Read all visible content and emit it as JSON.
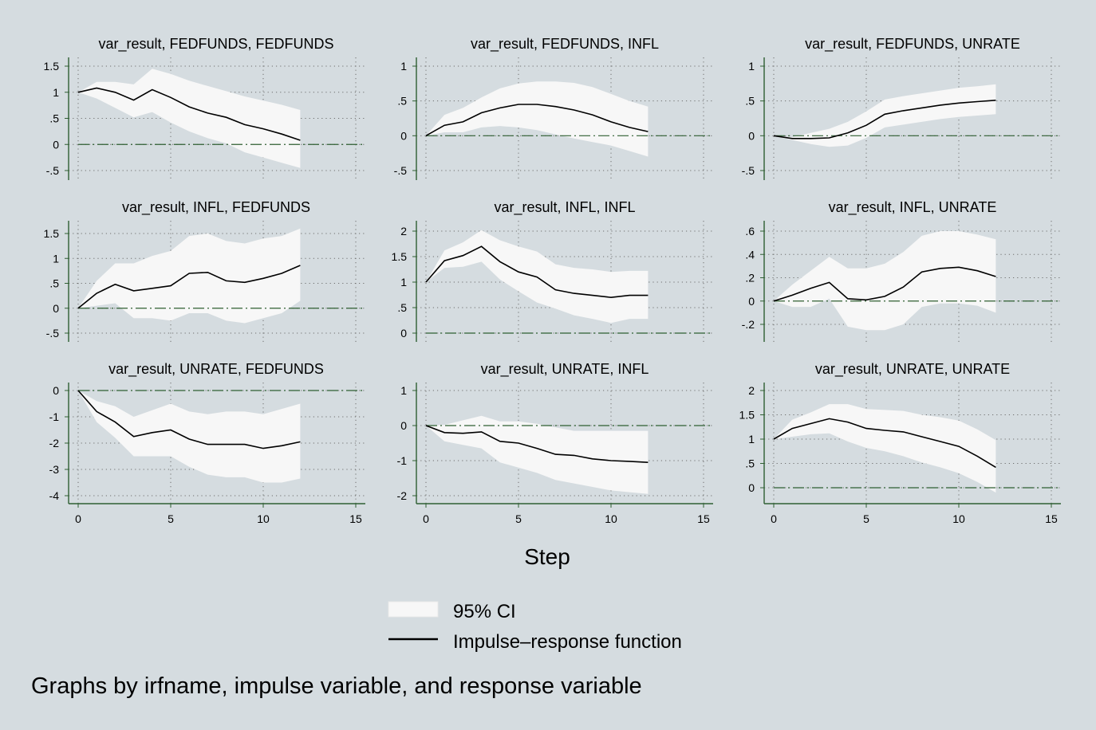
{
  "colors": {
    "background": "#d5dce0",
    "ci_fill": "#f7f7f7",
    "irf_line": "#000000",
    "axis": "#2f5f32",
    "zero_line": "#2f5f32",
    "grid": "#6e6e6e"
  },
  "xaxis_title": "Step",
  "legend": {
    "ci_label": "95% CI",
    "irf_label": "Impulse–response function"
  },
  "note": "Graphs by irfname, impulse variable, and response variable",
  "chart_data": [
    {
      "type": "area",
      "title": "var_result, FEDFUNDS, FEDFUNDS",
      "x_ticks": [
        0,
        5,
        10,
        15
      ],
      "y_ticks": [
        -0.5,
        0,
        0.5,
        1,
        1.5
      ],
      "y_tick_labels": [
        "-.5",
        "0",
        ".5",
        "1",
        "1.5"
      ],
      "xlim": [
        0,
        15
      ],
      "ylim": [
        -0.5,
        1.5
      ],
      "grid": true,
      "series": [
        {
          "name": "95% CI",
          "x": [
            0,
            1,
            2,
            3,
            4,
            5,
            6,
            7,
            8,
            9,
            10,
            11,
            12
          ],
          "lower": [
            1,
            0.88,
            0.7,
            0.52,
            0.62,
            0.42,
            0.25,
            0.12,
            0.02,
            -0.15,
            -0.25,
            -0.35,
            -0.45
          ],
          "upper": [
            1,
            1.2,
            1.2,
            1.15,
            1.45,
            1.35,
            1.22,
            1.12,
            1.02,
            0.92,
            0.84,
            0.76,
            0.66
          ]
        },
        {
          "name": "Impulse–response function",
          "x": [
            0,
            1,
            2,
            3,
            4,
            5,
            6,
            7,
            8,
            9,
            10,
            11,
            12
          ],
          "values": [
            1,
            1.08,
            1.0,
            0.85,
            1.05,
            0.9,
            0.72,
            0.6,
            0.52,
            0.38,
            0.3,
            0.2,
            0.08
          ]
        }
      ]
    },
    {
      "type": "area",
      "title": "var_result, FEDFUNDS, INFL",
      "x_ticks": [
        0,
        5,
        10,
        15
      ],
      "y_ticks": [
        -0.5,
        0,
        0.5,
        1
      ],
      "y_tick_labels": [
        "-.5",
        "0",
        ".5",
        "1"
      ],
      "xlim": [
        0,
        15
      ],
      "ylim": [
        -0.5,
        1
      ],
      "grid": true,
      "series": [
        {
          "name": "95% CI",
          "x": [
            0,
            1,
            2,
            3,
            4,
            5,
            6,
            7,
            8,
            9,
            10,
            11,
            12
          ],
          "lower": [
            0,
            0.05,
            0.05,
            0.12,
            0.14,
            0.12,
            0.08,
            0.02,
            -0.04,
            -0.09,
            -0.14,
            -0.22,
            -0.3
          ],
          "upper": [
            0,
            0.3,
            0.4,
            0.55,
            0.68,
            0.75,
            0.78,
            0.78,
            0.76,
            0.7,
            0.6,
            0.5,
            0.42
          ]
        },
        {
          "name": "Impulse–response function",
          "x": [
            0,
            1,
            2,
            3,
            4,
            5,
            6,
            7,
            8,
            9,
            10,
            11,
            12
          ],
          "values": [
            0,
            0.15,
            0.2,
            0.33,
            0.4,
            0.45,
            0.45,
            0.42,
            0.37,
            0.3,
            0.2,
            0.12,
            0.06
          ]
        }
      ]
    },
    {
      "type": "area",
      "title": "var_result, FEDFUNDS, UNRATE",
      "x_ticks": [
        0,
        5,
        10,
        15
      ],
      "y_ticks": [
        -0.5,
        0,
        0.5,
        1
      ],
      "y_tick_labels": [
        "-.5",
        "0",
        ".5",
        "1"
      ],
      "xlim": [
        0,
        15
      ],
      "ylim": [
        -0.5,
        1
      ],
      "grid": true,
      "series": [
        {
          "name": "95% CI",
          "x": [
            0,
            1,
            2,
            3,
            4,
            5,
            6,
            7,
            8,
            9,
            10,
            11,
            12
          ],
          "lower": [
            0,
            -0.06,
            -0.12,
            -0.16,
            -0.14,
            -0.03,
            0.12,
            0.16,
            0.2,
            0.24,
            0.27,
            0.29,
            0.31
          ],
          "upper": [
            0,
            -0.02,
            0.04,
            0.1,
            0.2,
            0.35,
            0.52,
            0.57,
            0.61,
            0.65,
            0.69,
            0.71,
            0.74
          ]
        },
        {
          "name": "Impulse–response function",
          "x": [
            0,
            1,
            2,
            3,
            4,
            5,
            6,
            7,
            8,
            9,
            10,
            11,
            12
          ],
          "values": [
            0,
            -0.04,
            -0.04,
            -0.03,
            0.04,
            0.15,
            0.31,
            0.36,
            0.4,
            0.44,
            0.47,
            0.49,
            0.51
          ]
        }
      ]
    },
    {
      "type": "area",
      "title": "var_result, INFL, FEDFUNDS",
      "x_ticks": [
        0,
        5,
        10,
        15
      ],
      "y_ticks": [
        -0.5,
        0,
        0.5,
        1,
        1.5
      ],
      "y_tick_labels": [
        "-.5",
        "0",
        ".5",
        "1",
        "1.5"
      ],
      "xlim": [
        0,
        15
      ],
      "ylim": [
        -0.5,
        1.5
      ],
      "grid": true,
      "series": [
        {
          "name": "95% CI",
          "x": [
            0,
            1,
            2,
            3,
            4,
            5,
            6,
            7,
            8,
            9,
            10,
            11,
            12
          ],
          "lower": [
            0,
            0.05,
            0.1,
            -0.2,
            -0.2,
            -0.25,
            -0.1,
            -0.1,
            -0.25,
            -0.3,
            -0.2,
            -0.1,
            0.15
          ],
          "upper": [
            0,
            0.55,
            0.9,
            0.9,
            1.05,
            1.15,
            1.45,
            1.5,
            1.35,
            1.3,
            1.4,
            1.45,
            1.6
          ]
        },
        {
          "name": "Impulse–response function",
          "x": [
            0,
            1,
            2,
            3,
            4,
            5,
            6,
            7,
            8,
            9,
            10,
            11,
            12
          ],
          "values": [
            0,
            0.3,
            0.48,
            0.35,
            0.4,
            0.45,
            0.7,
            0.72,
            0.55,
            0.52,
            0.6,
            0.7,
            0.86
          ]
        }
      ]
    },
    {
      "type": "area",
      "title": "var_result, INFL, INFL",
      "x_ticks": [
        0,
        5,
        10,
        15
      ],
      "y_ticks": [
        0,
        0.5,
        1,
        1.5,
        2
      ],
      "y_tick_labels": [
        "0",
        ".5",
        "1",
        "1.5",
        "2"
      ],
      "xlim": [
        0,
        15
      ],
      "ylim": [
        0,
        2
      ],
      "grid": true,
      "series": [
        {
          "name": "95% CI",
          "x": [
            0,
            1,
            2,
            3,
            4,
            5,
            6,
            7,
            8,
            9,
            10,
            11,
            12
          ],
          "lower": [
            1,
            1.28,
            1.3,
            1.4,
            1.05,
            0.82,
            0.6,
            0.48,
            0.35,
            0.28,
            0.2,
            0.28,
            0.28
          ],
          "upper": [
            1,
            1.62,
            1.78,
            2.02,
            1.82,
            1.7,
            1.6,
            1.35,
            1.28,
            1.25,
            1.2,
            1.22,
            1.22
          ]
        },
        {
          "name": "Impulse–response function",
          "x": [
            0,
            1,
            2,
            3,
            4,
            5,
            6,
            7,
            8,
            9,
            10,
            11,
            12
          ],
          "values": [
            1,
            1.42,
            1.52,
            1.7,
            1.4,
            1.2,
            1.1,
            0.85,
            0.78,
            0.74,
            0.7,
            0.74,
            0.74
          ]
        }
      ]
    },
    {
      "type": "area",
      "title": "var_result, INFL, UNRATE",
      "x_ticks": [
        0,
        5,
        10,
        15
      ],
      "y_ticks": [
        -0.2,
        0,
        0.2,
        0.4,
        0.6
      ],
      "y_tick_labels": [
        "-.2",
        "0",
        ".2",
        ".4",
        ".6"
      ],
      "xlim": [
        0,
        15
      ],
      "ylim": [
        -0.2,
        0.6
      ],
      "grid": true,
      "series": [
        {
          "name": "95% CI",
          "x": [
            0,
            1,
            2,
            3,
            4,
            5,
            6,
            7,
            8,
            9,
            10,
            11,
            12
          ],
          "lower": [
            0,
            -0.05,
            -0.05,
            0.02,
            -0.22,
            -0.25,
            -0.25,
            -0.2,
            -0.05,
            -0.02,
            -0.02,
            -0.04,
            -0.1
          ],
          "upper": [
            0,
            0.14,
            0.26,
            0.38,
            0.28,
            0.28,
            0.32,
            0.42,
            0.56,
            0.6,
            0.6,
            0.57,
            0.53
          ]
        },
        {
          "name": "Impulse–response function",
          "x": [
            0,
            1,
            2,
            3,
            4,
            5,
            6,
            7,
            8,
            9,
            10,
            11,
            12
          ],
          "values": [
            0,
            0.05,
            0.11,
            0.16,
            0.02,
            0.01,
            0.04,
            0.12,
            0.25,
            0.28,
            0.29,
            0.26,
            0.21
          ]
        }
      ]
    },
    {
      "type": "area",
      "title": "var_result, UNRATE, FEDFUNDS",
      "x_ticks": [
        0,
        5,
        10,
        15
      ],
      "y_ticks": [
        -4,
        -3,
        -2,
        -1,
        0
      ],
      "y_tick_labels": [
        "-4",
        "-3",
        "-2",
        "-1",
        "0"
      ],
      "xlim": [
        0,
        15
      ],
      "ylim": [
        -4,
        0
      ],
      "grid": true,
      "series": [
        {
          "name": "95% CI",
          "x": [
            0,
            1,
            2,
            3,
            4,
            5,
            6,
            7,
            8,
            9,
            10,
            11,
            12
          ],
          "lower": [
            0,
            -1.2,
            -1.8,
            -2.5,
            -2.5,
            -2.5,
            -2.9,
            -3.2,
            -3.3,
            -3.3,
            -3.5,
            -3.5,
            -3.35
          ],
          "upper": [
            0,
            -0.4,
            -0.6,
            -1.0,
            -0.75,
            -0.5,
            -0.8,
            -0.9,
            -0.8,
            -0.8,
            -0.9,
            -0.7,
            -0.5
          ]
        },
        {
          "name": "Impulse–response function",
          "x": [
            0,
            1,
            2,
            3,
            4,
            5,
            6,
            7,
            8,
            9,
            10,
            11,
            12
          ],
          "values": [
            0,
            -0.8,
            -1.2,
            -1.75,
            -1.6,
            -1.5,
            -1.85,
            -2.05,
            -2.05,
            -2.05,
            -2.2,
            -2.1,
            -1.95
          ]
        }
      ]
    },
    {
      "type": "area",
      "title": "var_result, UNRATE, INFL",
      "x_ticks": [
        0,
        5,
        10,
        15
      ],
      "y_ticks": [
        -2,
        -1,
        0,
        1
      ],
      "y_tick_labels": [
        "-2",
        "-1",
        "0",
        "1"
      ],
      "xlim": [
        0,
        15
      ],
      "ylim": [
        -2,
        1
      ],
      "grid": true,
      "series": [
        {
          "name": "95% CI",
          "x": [
            0,
            1,
            2,
            3,
            4,
            5,
            6,
            7,
            8,
            9,
            10,
            11,
            12
          ],
          "lower": [
            0,
            -0.45,
            -0.55,
            -0.65,
            -1.05,
            -1.2,
            -1.35,
            -1.55,
            -1.65,
            -1.75,
            -1.85,
            -1.9,
            -1.95
          ],
          "upper": [
            0,
            0.02,
            0.15,
            0.28,
            0.12,
            0.12,
            0.05,
            -0.05,
            -0.15,
            -0.15,
            -0.15,
            -0.15,
            -0.15
          ]
        },
        {
          "name": "Impulse–response function",
          "x": [
            0,
            1,
            2,
            3,
            4,
            5,
            6,
            7,
            8,
            9,
            10,
            11,
            12
          ],
          "values": [
            0,
            -0.2,
            -0.22,
            -0.18,
            -0.45,
            -0.5,
            -0.65,
            -0.82,
            -0.85,
            -0.95,
            -1.0,
            -1.02,
            -1.05
          ]
        }
      ]
    },
    {
      "type": "area",
      "title": "var_result, UNRATE, UNRATE",
      "x_ticks": [
        0,
        5,
        10,
        15
      ],
      "y_ticks": [
        0,
        0.5,
        1,
        1.5,
        2
      ],
      "y_tick_labels": [
        "0",
        ".5",
        "1",
        "1.5",
        "2"
      ],
      "xlim": [
        0,
        15
      ],
      "ylim": [
        0,
        2
      ],
      "grid": true,
      "series": [
        {
          "name": "95% CI",
          "x": [
            0,
            1,
            2,
            3,
            4,
            5,
            6,
            7,
            8,
            9,
            10,
            11,
            12
          ],
          "lower": [
            1,
            1.05,
            1.1,
            1.12,
            0.95,
            0.82,
            0.75,
            0.65,
            0.52,
            0.42,
            0.3,
            0.12,
            -0.1
          ],
          "upper": [
            1,
            1.4,
            1.55,
            1.72,
            1.72,
            1.62,
            1.6,
            1.58,
            1.5,
            1.45,
            1.38,
            1.2,
            0.98
          ]
        },
        {
          "name": "Impulse–response function",
          "x": [
            0,
            1,
            2,
            3,
            4,
            5,
            6,
            7,
            8,
            9,
            10,
            11,
            12
          ],
          "values": [
            1,
            1.22,
            1.32,
            1.42,
            1.35,
            1.22,
            1.18,
            1.15,
            1.05,
            0.95,
            0.85,
            0.65,
            0.42
          ]
        }
      ]
    }
  ]
}
